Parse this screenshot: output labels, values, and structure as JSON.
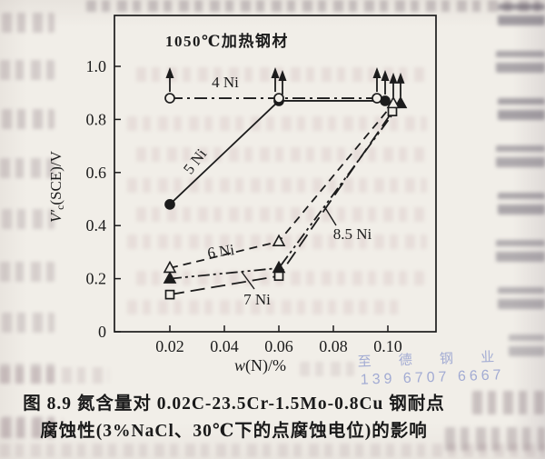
{
  "figure": {
    "annotation": "1050℃加热钢材",
    "caption_line1": "图 8.9  氮含量对 0.02C-23.5Cr-1.5Mo-0.8Cu 钢耐点",
    "caption_line2": "腐蚀性(3%NaCl、30℃下的点腐蚀电位)的影响"
  },
  "watermark": {
    "name_text": "至 德 钢 业",
    "phone_text": "139 6707 6667",
    "color": "#8f9bce"
  },
  "axis_labels": {
    "ylabel_main": "V′",
    "ylabel_sub": "c",
    "ylabel_rest": "(SCE)/V",
    "xlabel_w": "w",
    "xlabel_rest": "(N)/%"
  },
  "chart_data": {
    "type": "line",
    "title": "",
    "annotation": "1050℃加热钢材",
    "xlabel": "w(N)/%",
    "ylabel": "V′c(SCE)/V",
    "xlim": [
      0.0,
      0.118
    ],
    "ylim": [
      0,
      1.19
    ],
    "grid": false,
    "legend_position": "inline-labels",
    "ink_color": "#1c1c1c",
    "xticks": [
      {
        "v": 0.02,
        "label": "0.02"
      },
      {
        "v": 0.04,
        "label": "0.04"
      },
      {
        "v": 0.06,
        "label": "0.06"
      },
      {
        "v": 0.08,
        "label": "0.08"
      },
      {
        "v": 0.1,
        "label": "0.10"
      }
    ],
    "yticks": [
      {
        "v": 0.0,
        "label": "0"
      },
      {
        "v": 0.2,
        "label": "0.2"
      },
      {
        "v": 0.4,
        "label": "0.4"
      },
      {
        "v": 0.6,
        "label": "0.6"
      },
      {
        "v": 0.8,
        "label": "0.8"
      },
      {
        "v": 1.0,
        "label": "1.0"
      }
    ],
    "series": [
      {
        "name": "4 Ni",
        "marker": "circle-open",
        "line": "dashdot",
        "x": [
          0.02,
          0.06,
          0.1
        ],
        "y": [
          0.88,
          0.88,
          0.88
        ],
        "arrows_up": [
          true,
          true,
          true
        ]
      },
      {
        "name": "5 Ni",
        "marker": "circle-filled",
        "line": "solid",
        "x": [
          0.02,
          0.06,
          0.1
        ],
        "y": [
          0.48,
          0.87,
          0.87
        ],
        "arrows_up": [
          false,
          true,
          true
        ]
      },
      {
        "name": "6 Ni",
        "marker": "triangle-open",
        "line": "dashed",
        "x": [
          0.02,
          0.06,
          0.1
        ],
        "y": [
          0.24,
          0.34,
          0.86
        ],
        "arrows_up": [
          false,
          false,
          true
        ]
      },
      {
        "name": "7 Ni",
        "marker": "triangle-filled",
        "line": "dashdotdot",
        "x": [
          0.02,
          0.06,
          0.1
        ],
        "y": [
          0.2,
          0.24,
          0.86
        ],
        "arrows_up": [
          false,
          false,
          true
        ]
      },
      {
        "name": "8.5 Ni",
        "marker": "square-open",
        "line": "longdash",
        "x": [
          0.02,
          0.06,
          0.1
        ],
        "y": [
          0.14,
          0.21,
          0.83
        ],
        "arrows_up": [
          false,
          false,
          false
        ]
      }
    ],
    "arrow_meaning": "up-arrow on a point: potential at or above plotted value"
  }
}
